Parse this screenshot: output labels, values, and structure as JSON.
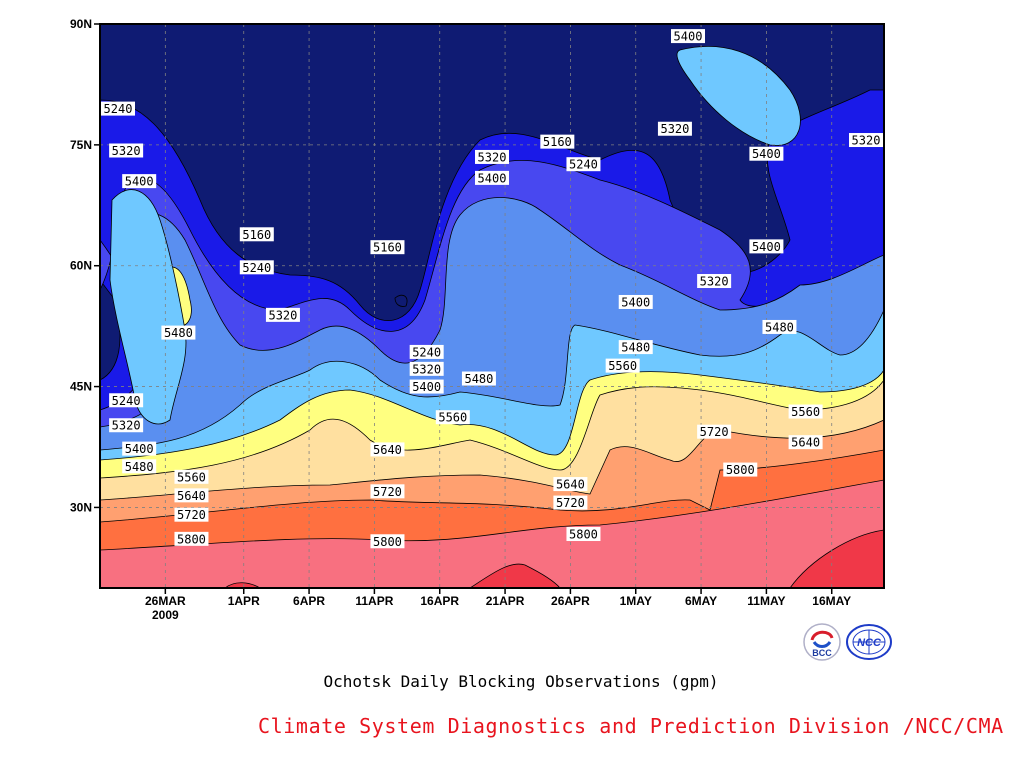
{
  "chart_data": {
    "type": "contour",
    "title": "Ochotsk Daily Blocking Observations (gpm)",
    "x_ticks": [
      "26MAR",
      "1APR",
      "6APR",
      "11APR",
      "16APR",
      "21APR",
      "26APR",
      "1MAY",
      "6MAY",
      "11MAY",
      "16MAY"
    ],
    "x_year_label": "2009",
    "y_ticks": [
      "30N",
      "45N",
      "60N",
      "75N",
      "90N"
    ],
    "xlim": [
      "2009-03-21",
      "2009-05-20"
    ],
    "ylim": [
      20,
      90
    ],
    "grid": true,
    "contour_levels": [
      5160,
      5240,
      5320,
      5400,
      5480,
      5560,
      5640,
      5720,
      5800
    ],
    "level_colors": [
      "#0f1b73",
      "#1a1ae8",
      "#4848f0",
      "#5a8ff0",
      "#6fc8ff",
      "#ffff80",
      "#ffe0a0",
      "#ffa070",
      "#ff7040",
      "#f87080",
      "#f03848"
    ],
    "contour_labels": [
      {
        "value": "5240",
        "date": "2009-03-21",
        "lat": 79.5
      },
      {
        "value": "5320",
        "date": "2009-03-23",
        "lat": 74.3
      },
      {
        "value": "5400",
        "date": "2009-03-24",
        "lat": 70.5
      },
      {
        "value": "5480",
        "date": "2009-03-27",
        "lat": 51.7
      },
      {
        "value": "5240",
        "date": "2009-03-23",
        "lat": 43.3
      },
      {
        "value": "5320",
        "date": "2009-03-23",
        "lat": 40.2
      },
      {
        "value": "5400",
        "date": "2009-03-24",
        "lat": 37.3
      },
      {
        "value": "5480",
        "date": "2009-03-24",
        "lat": 35.1
      },
      {
        "value": "5560",
        "date": "2009-03-28",
        "lat": 33.8
      },
      {
        "value": "5640",
        "date": "2009-03-28",
        "lat": 31.5
      },
      {
        "value": "5720",
        "date": "2009-03-28",
        "lat": 29.1
      },
      {
        "value": "5800",
        "date": "2009-03-28",
        "lat": 26.1
      },
      {
        "value": "5160",
        "date": "2009-04-02",
        "lat": 63.9
      },
      {
        "value": "5240",
        "date": "2009-04-02",
        "lat": 59.8
      },
      {
        "value": "5320",
        "date": "2009-04-04",
        "lat": 53.9
      },
      {
        "value": "5160",
        "date": "2009-04-12",
        "lat": 62.3
      },
      {
        "value": "5240",
        "date": "2009-04-15",
        "lat": 49.3
      },
      {
        "value": "5320",
        "date": "2009-04-15",
        "lat": 47.2
      },
      {
        "value": "5400",
        "date": "2009-04-15",
        "lat": 45.0
      },
      {
        "value": "5480",
        "date": "2009-04-19",
        "lat": 46.0
      },
      {
        "value": "5560",
        "date": "2009-04-17",
        "lat": 41.2
      },
      {
        "value": "5640",
        "date": "2009-04-12",
        "lat": 37.2
      },
      {
        "value": "5720",
        "date": "2009-04-12",
        "lat": 32.0
      },
      {
        "value": "5800",
        "date": "2009-04-12",
        "lat": 25.8
      },
      {
        "value": "5320",
        "date": "2009-04-20",
        "lat": 73.5
      },
      {
        "value": "5400",
        "date": "2009-04-20",
        "lat": 70.9
      },
      {
        "value": "5160",
        "date": "2009-04-25",
        "lat": 75.4
      },
      {
        "value": "5240",
        "date": "2009-04-27",
        "lat": 72.6
      },
      {
        "value": "5640",
        "date": "2009-04-26",
        "lat": 32.9
      },
      {
        "value": "5720",
        "date": "2009-04-26",
        "lat": 30.6
      },
      {
        "value": "5800",
        "date": "2009-04-27",
        "lat": 26.7
      },
      {
        "value": "5560",
        "date": "2009-04-30",
        "lat": 47.6
      },
      {
        "value": "5480",
        "date": "2009-05-01",
        "lat": 49.9
      },
      {
        "value": "5400",
        "date": "2009-05-01",
        "lat": 55.5
      },
      {
        "value": "5400",
        "date": "2009-05-05",
        "lat": 88.5
      },
      {
        "value": "5320",
        "date": "2009-05-04",
        "lat": 77.0
      },
      {
        "value": "5320",
        "date": "2009-05-07",
        "lat": 58.1
      },
      {
        "value": "5720",
        "date": "2009-05-07",
        "lat": 39.4
      },
      {
        "value": "5800",
        "date": "2009-05-09",
        "lat": 34.7
      },
      {
        "value": "5400",
        "date": "2009-05-11",
        "lat": 73.9
      },
      {
        "value": "5400",
        "date": "2009-05-11",
        "lat": 62.4
      },
      {
        "value": "5480",
        "date": "2009-05-12",
        "lat": 52.4
      },
      {
        "value": "5560",
        "date": "2009-05-14",
        "lat": 41.9
      },
      {
        "value": "5640",
        "date": "2009-05-14",
        "lat": 38.1
      },
      {
        "value": "5320",
        "date": "2009-05-20",
        "lat": 75.6
      }
    ]
  },
  "logos": {
    "left_icon": "bcc-logo",
    "left_text": "BCC",
    "right_icon": "ncc-logo",
    "right_text": "NCC"
  },
  "credit": "Climate System Diagnostics and Prediction Division /NCC/CMA"
}
